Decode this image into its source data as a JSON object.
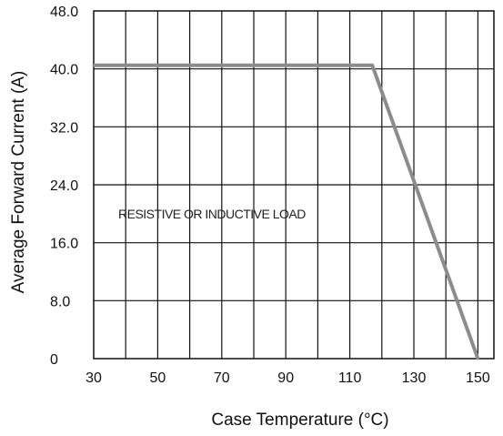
{
  "chart_data": {
    "type": "line",
    "title": "",
    "xlabel": "Case  Temperature (°C)",
    "ylabel": "Average Forward Current (A)",
    "xlim": [
      30,
      155
    ],
    "ylim": [
      0,
      48
    ],
    "x_ticks": [
      30,
      50,
      70,
      90,
      110,
      130,
      150
    ],
    "x_tick_labels": [
      "30",
      "50",
      "70",
      "90",
      "110",
      "130",
      "150"
    ],
    "y_ticks": [
      0,
      8,
      16,
      24,
      32,
      40,
      48
    ],
    "y_tick_labels": [
      "0",
      "8.0",
      "16.0",
      "24.0",
      "32.0",
      "40.0",
      "48.0"
    ],
    "grid": true,
    "annotation": "RESISTIVE OR INDUCTIVE LOAD",
    "series": [
      {
        "color": "#8c8c8c",
        "points": [
          {
            "x": 30,
            "y": 40.5
          },
          {
            "x": 117,
            "y": 40.5
          },
          {
            "x": 150,
            "y": 0
          }
        ]
      }
    ]
  }
}
